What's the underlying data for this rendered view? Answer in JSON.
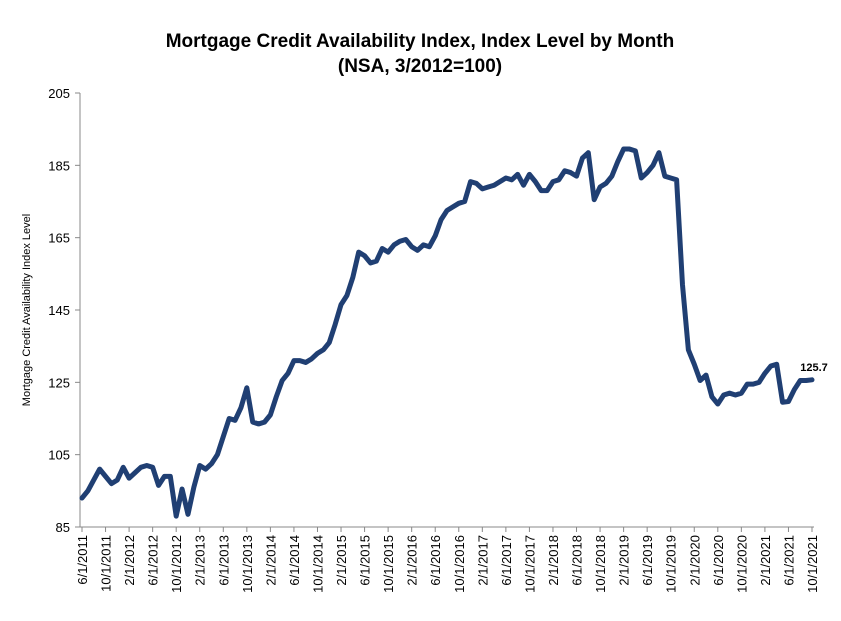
{
  "chart_data": {
    "type": "line",
    "title": "Mortgage Credit Availability Index, Index Level by Month",
    "subtitle": "(NSA, 3/2012=100)",
    "y_label": "Mortgage Credit Availability Index Level",
    "categories": [
      "6/1/2011",
      null,
      null,
      null,
      "10/1/2011",
      null,
      null,
      null,
      "2/1/2012",
      null,
      null,
      null,
      "6/1/2012",
      null,
      null,
      null,
      "10/1/2012",
      null,
      null,
      null,
      "2/1/2013",
      null,
      null,
      null,
      "6/1/2013",
      null,
      null,
      null,
      "10/1/2013",
      null,
      null,
      null,
      "2/1/2014",
      null,
      null,
      null,
      "6/1/2014",
      null,
      null,
      null,
      "10/1/2014",
      null,
      null,
      null,
      "2/1/2015",
      null,
      null,
      null,
      "6/1/2015",
      null,
      null,
      null,
      "10/1/2015",
      null,
      null,
      null,
      "2/1/2016",
      null,
      null,
      null,
      "6/1/2016",
      null,
      null,
      null,
      "10/1/2016",
      null,
      null,
      null,
      "2/1/2017",
      null,
      null,
      null,
      "6/1/2017",
      null,
      null,
      null,
      "10/1/2017",
      null,
      null,
      null,
      "2/1/2018",
      null,
      null,
      null,
      "6/1/2018",
      null,
      null,
      null,
      "10/1/2018",
      null,
      null,
      null,
      "2/1/2019",
      null,
      null,
      null,
      "6/1/2019",
      null,
      null,
      null,
      "10/1/2019",
      null,
      null,
      null,
      "2/1/2020",
      null,
      null,
      null,
      "6/1/2020",
      null,
      null,
      null,
      "10/1/2020",
      null,
      null,
      null,
      "2/1/2021",
      null,
      null,
      null,
      "6/1/2021",
      null,
      null,
      null,
      "10/1/2021"
    ],
    "values": [
      93,
      95,
      98,
      101,
      99,
      97,
      98,
      101.5,
      98.5,
      100,
      101.5,
      102,
      101.5,
      96.5,
      99,
      99,
      88,
      95.5,
      88.5,
      96,
      102,
      101,
      102.5,
      105,
      110,
      115,
      114.5,
      118,
      123.5,
      114,
      113.5,
      114,
      116,
      121,
      125.5,
      127.5,
      131,
      131,
      130.5,
      131.5,
      133,
      134,
      136,
      141,
      146.5,
      149,
      154,
      161,
      160,
      158,
      158.5,
      162,
      161,
      163,
      164,
      164.5,
      162.5,
      161.5,
      163,
      162.5,
      165.5,
      170,
      172.5,
      173.5,
      174.5,
      175,
      180.5,
      180,
      178.5,
      179,
      179.5,
      180.5,
      181.5,
      181,
      182.5,
      179.5,
      182.5,
      180.5,
      178,
      178,
      180.5,
      181,
      183.5,
      183,
      182,
      187,
      188.5,
      175.5,
      179,
      180,
      182,
      186,
      189.5,
      189.5,
      189,
      181.5,
      183,
      185,
      188.5,
      182,
      181.5,
      181,
      152,
      134,
      130,
      125.5,
      127,
      121,
      119,
      121.5,
      122,
      121.5,
      122,
      124.5,
      124.5,
      125,
      127.5,
      129.5,
      130,
      119.5,
      119.7,
      123,
      125.5,
      125.5,
      125.7
    ],
    "labeled_points": [
      124
    ],
    "color": "#203f73",
    "ylim": [
      85,
      205
    ],
    "yticks": [
      85,
      105,
      125,
      145,
      165,
      185,
      205
    ],
    "grid": false
  }
}
